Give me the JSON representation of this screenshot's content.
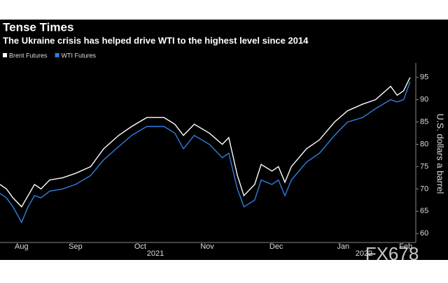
{
  "chart_data": {
    "type": "line",
    "title": "Tense Times",
    "subtitle": "The Ukraine crisis has helped drive WTI to the highest level since 2014",
    "y_label": "U.S. dollars a barrel",
    "year_labels": [
      "2021",
      "2022"
    ],
    "watermark": "FX678",
    "x": [
      0,
      3,
      6,
      10,
      13,
      16,
      19,
      23,
      29,
      35,
      42,
      48,
      55,
      61,
      68,
      76,
      81,
      85,
      90,
      97,
      103,
      106,
      110,
      113,
      118,
      121,
      126,
      129,
      132,
      135,
      142,
      148,
      155,
      161,
      168,
      174,
      181,
      184,
      187,
      190
    ],
    "series": [
      {
        "name": "Brent Futures",
        "color": "#ffffff",
        "values": [
          71,
          70,
          68,
          66,
          68.5,
          71,
          70,
          72,
          72.5,
          73.5,
          75,
          79,
          82,
          84,
          86,
          86,
          84.5,
          82,
          84.5,
          82.5,
          80,
          81.5,
          73,
          68.5,
          71,
          75.5,
          74,
          75,
          71.5,
          75,
          79,
          81,
          85,
          87.5,
          89,
          90,
          93,
          91,
          92,
          95
        ]
      },
      {
        "name": "WTI Futures",
        "color": "#2f7fe0",
        "values": [
          69,
          68,
          66,
          62.5,
          66,
          68.5,
          68,
          69.5,
          70,
          71,
          73,
          76.5,
          79.5,
          82,
          84,
          84,
          82.5,
          79,
          82,
          80,
          77,
          78,
          70,
          66,
          67.5,
          72,
          71,
          72,
          68.5,
          72,
          76,
          78,
          82,
          85,
          86,
          88,
          90,
          89.5,
          90,
          94
        ]
      }
    ],
    "xlim": [
      0,
      192
    ],
    "xticks": [
      {
        "value": 10,
        "label": "Aug"
      },
      {
        "value": 35,
        "label": "Sep"
      },
      {
        "value": 65,
        "label": "Oct"
      },
      {
        "value": 96,
        "label": "Nov"
      },
      {
        "value": 128,
        "label": "Dec"
      },
      {
        "value": 159,
        "label": "Jan"
      },
      {
        "value": 188,
        "label": "Feb"
      }
    ],
    "ylim": [
      58,
      97
    ],
    "yticks": [
      60,
      65,
      70,
      75,
      80,
      85,
      90,
      95
    ]
  }
}
